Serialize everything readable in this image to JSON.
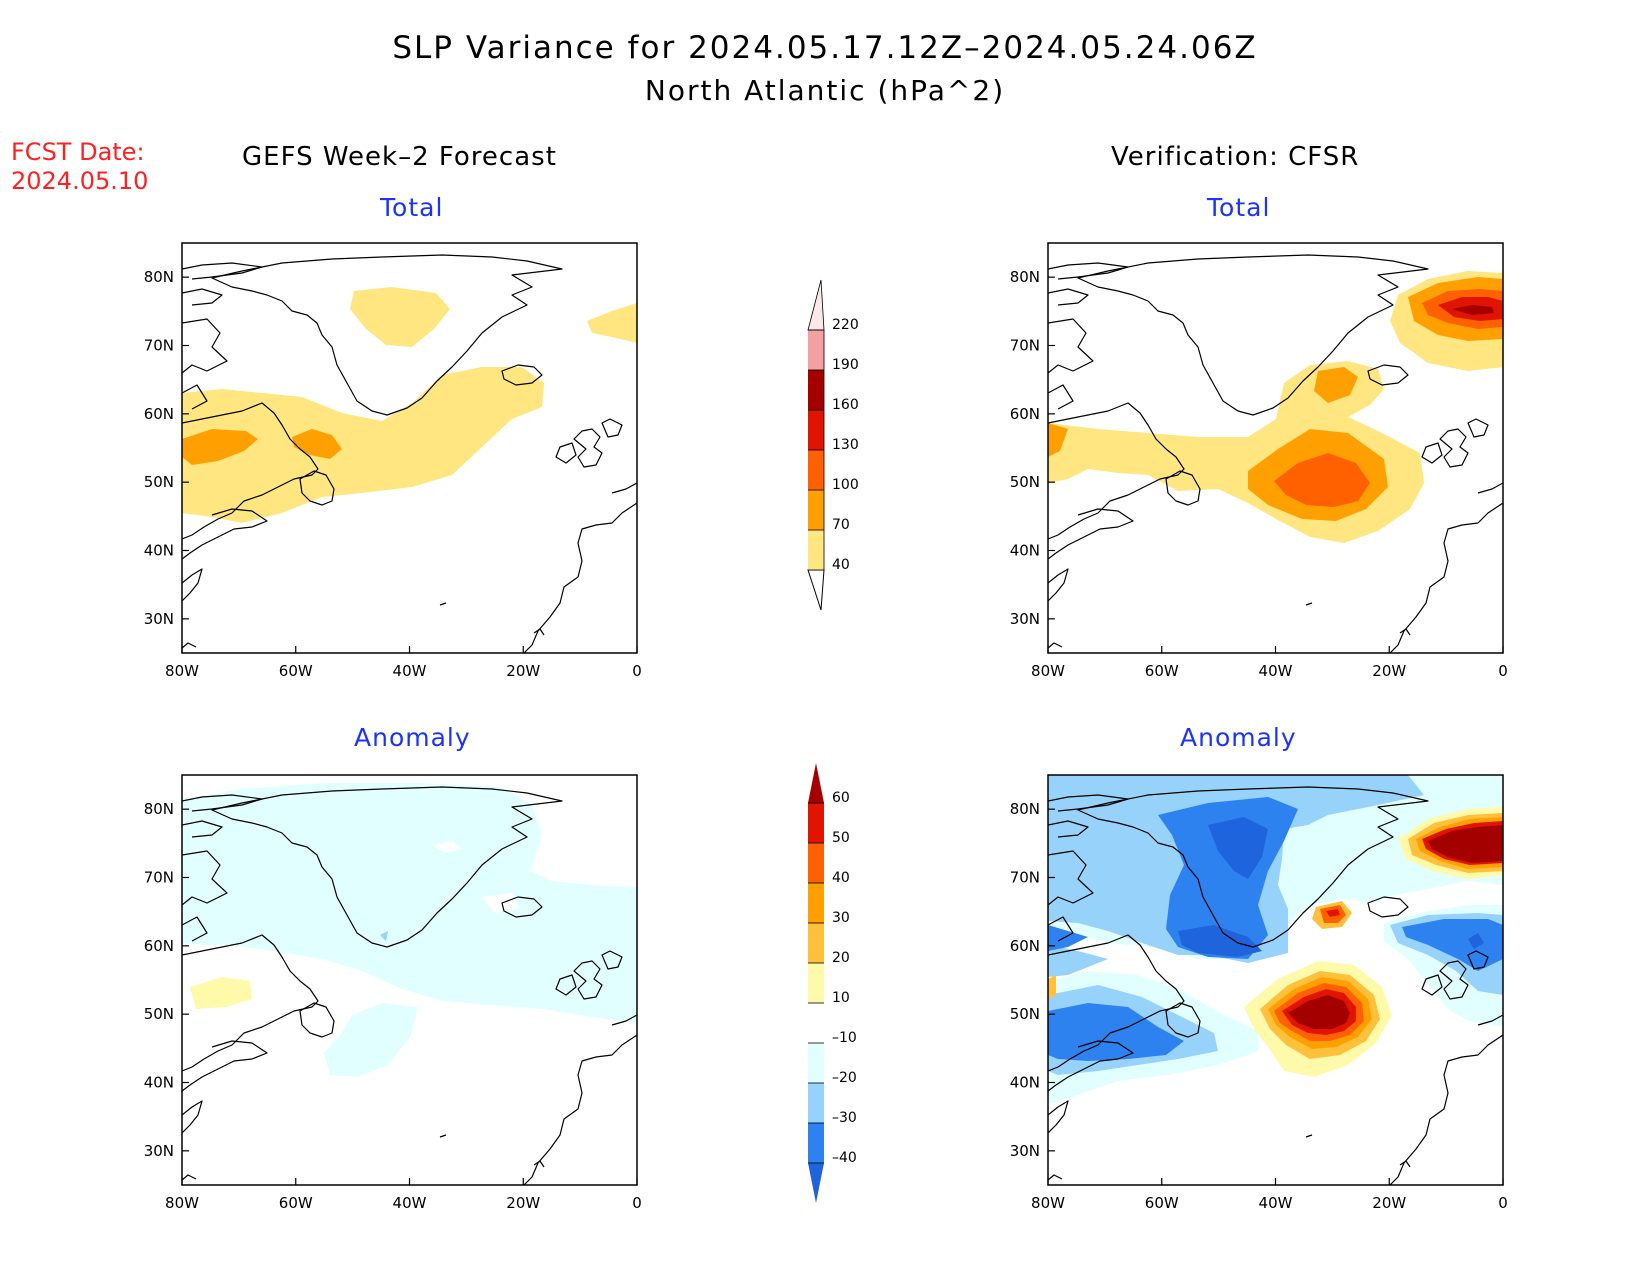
{
  "title": {
    "line1": "SLP Variance for 2024.05.17.12Z–2024.05.24.06Z",
    "line2": "North Atlantic (hPa^2)"
  },
  "fcst": {
    "line1": "FCST Date:",
    "line2": "2024.05.10"
  },
  "columns": {
    "left": "GEFS Week–2 Forecast",
    "right": "Verification: CFSR"
  },
  "panel_titles": {
    "forecast_total": "Total",
    "verification_total": "Total",
    "forecast_anomaly": "Anomaly",
    "verification_anomaly": "Anomaly"
  },
  "axes": {
    "lon_labels": [
      "80W",
      "60W",
      "40W",
      "20W",
      "0"
    ],
    "lat_labels": [
      "80N",
      "70N",
      "60N",
      "50N",
      "40N",
      "30N"
    ],
    "lon_range": [
      -80,
      0
    ],
    "lat_range": [
      25,
      85
    ]
  },
  "colorbars": {
    "total": {
      "levels": [
        "40",
        "70",
        "100",
        "130",
        "160",
        "190",
        "220"
      ],
      "colors": [
        "#ffe680",
        "#ffa000",
        "#ff6000",
        "#e01400",
        "#a50000",
        "#f4a0a0",
        "#fde8e8"
      ]
    },
    "anomaly": {
      "levels": [
        "-40",
        "-30",
        "-20",
        "-10",
        "10",
        "20",
        "30",
        "40",
        "50",
        "60"
      ],
      "colors": [
        "#1e64dc",
        "#2d82f0",
        "#96d2fa",
        "#e1ffff",
        "#ffffff",
        "#fffaaa",
        "#ffc03c",
        "#ffa000",
        "#ff6000",
        "#e01400",
        "#a50000"
      ]
    }
  }
}
